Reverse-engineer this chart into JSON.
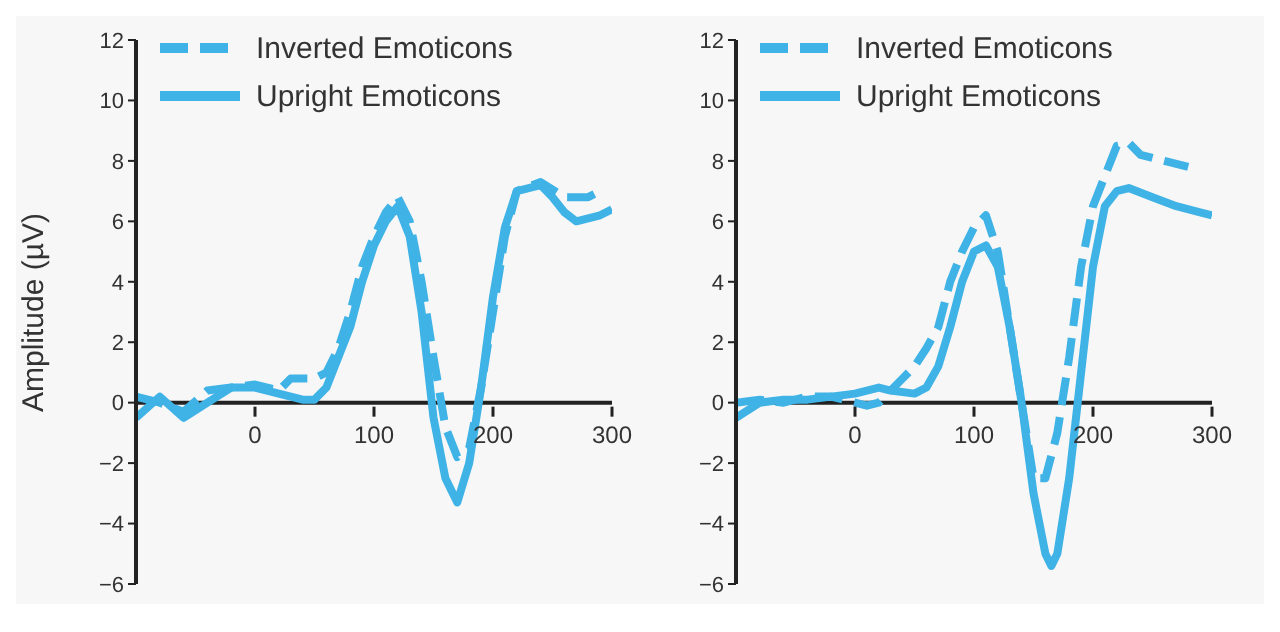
{
  "chart_data": [
    {
      "type": "line",
      "ylabel": "Amplitude (µV)",
      "xlim": [
        -100,
        300
      ],
      "xticks": [
        0,
        100,
        200,
        300
      ],
      "ylim": [
        -6,
        12
      ],
      "yticks": [
        -6,
        -4,
        -2,
        0,
        2,
        4,
        6,
        8,
        10,
        12
      ],
      "legend": "top left",
      "marker": "none",
      "series": [
        {
          "name": "Inverted Emoticons",
          "color": "#3fb2e6",
          "line_style": "dashed",
          "x": [
            -100,
            -80,
            -60,
            -40,
            -20,
            0,
            20,
            30,
            50,
            60,
            70,
            80,
            90,
            100,
            110,
            120,
            130,
            140,
            150,
            160,
            170,
            180,
            190,
            200,
            210,
            220,
            240,
            260,
            280,
            290
          ],
          "values": [
            0.2,
            0,
            -0.3,
            0.4,
            0.5,
            0.6,
            0.4,
            0.8,
            0.8,
            1,
            1.8,
            3,
            4.5,
            5.5,
            6.3,
            6.8,
            6,
            4,
            1.5,
            -0.8,
            -1.8,
            -1.5,
            0.5,
            3,
            5.5,
            7,
            7.3,
            6.8,
            6.8,
            7
          ]
        },
        {
          "name": "Upright Emoticons",
          "color": "#3fb2e6",
          "line_style": "solid",
          "x": [
            -100,
            -80,
            -60,
            -40,
            -20,
            0,
            20,
            40,
            50,
            60,
            70,
            80,
            90,
            100,
            110,
            120,
            130,
            140,
            150,
            160,
            170,
            180,
            190,
            200,
            210,
            220,
            240,
            250,
            260,
            270,
            280,
            290,
            300
          ],
          "values": [
            -0.5,
            0.2,
            -0.5,
            0,
            0.5,
            0.5,
            0.3,
            0.1,
            0.1,
            0.5,
            1.5,
            2.5,
            4,
            5.2,
            6,
            6.5,
            5.5,
            3,
            -0.5,
            -2.5,
            -3.3,
            -2,
            0.5,
            3.5,
            5.8,
            7,
            7.2,
            6.8,
            6.3,
            6,
            6.1,
            6.2,
            6.4
          ]
        }
      ]
    },
    {
      "type": "line",
      "xlim": [
        -100,
        300
      ],
      "xticks": [
        0,
        100,
        200,
        300
      ],
      "ylim": [
        -6,
        12
      ],
      "yticks": [
        -6,
        -4,
        -2,
        0,
        2,
        4,
        6,
        8,
        10,
        12
      ],
      "legend": "top left",
      "marker": "none",
      "series": [
        {
          "name": "Inverted Emoticons",
          "color": "#3fb2e6",
          "line_style": "dashed",
          "x": [
            -100,
            -80,
            -60,
            -40,
            -20,
            0,
            10,
            20,
            40,
            50,
            60,
            70,
            80,
            90,
            100,
            110,
            120,
            130,
            140,
            150,
            160,
            170,
            180,
            190,
            200,
            210,
            220,
            230,
            240,
            260,
            280
          ],
          "values": [
            0,
            0.1,
            0,
            0.2,
            0.2,
            0,
            -0.1,
            0,
            0.8,
            1.2,
            1.8,
            2.5,
            4,
            5,
            5.8,
            6.2,
            5,
            2.5,
            0,
            -2.5,
            -2.5,
            -1,
            1.5,
            4.5,
            6.5,
            7.5,
            8.5,
            8.6,
            8.2,
            8,
            7.8
          ]
        },
        {
          "name": "Upright Emoticons",
          "color": "#3fb2e6",
          "line_style": "solid",
          "x": [
            -100,
            -80,
            -60,
            -40,
            -20,
            0,
            20,
            30,
            50,
            60,
            70,
            80,
            90,
            100,
            110,
            120,
            130,
            140,
            150,
            160,
            165,
            170,
            180,
            190,
            200,
            210,
            220,
            230,
            250,
            270,
            290,
            300
          ],
          "values": [
            -0.5,
            0,
            0.1,
            0.1,
            0.2,
            0.3,
            0.5,
            0.4,
            0.3,
            0.5,
            1.2,
            2.5,
            4,
            5,
            5.2,
            4.5,
            2.5,
            0,
            -3,
            -5,
            -5.4,
            -5,
            -2.5,
            1,
            4.5,
            6.5,
            7,
            7.1,
            6.8,
            6.5,
            6.3,
            6.2
          ]
        }
      ]
    }
  ]
}
